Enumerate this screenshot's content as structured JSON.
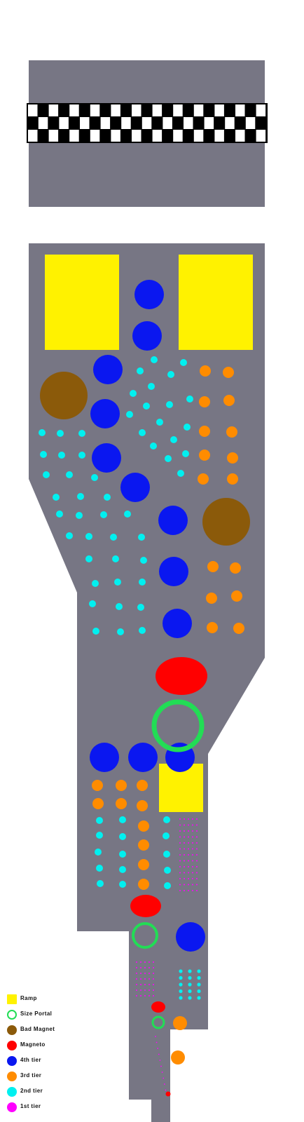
{
  "colors": {
    "board": "#777684",
    "ramp": "#fff200",
    "portal": "#22dd55",
    "bad_magnet": "#8b5a0a",
    "magneto": "#ff0000",
    "tier4": "#0a17f0",
    "tier3": "#ff8c00",
    "tier2": "#00f0f0",
    "tier1": "#ff00ff",
    "checker_dark": "#000000",
    "checker_light": "#ffffff"
  },
  "legend": [
    {
      "key": "ramp",
      "label": "Ramp",
      "icon": "ramp-square-icon",
      "shape": "square"
    },
    {
      "key": "portal",
      "label": "Size Portal",
      "icon": "size-portal-ring-icon",
      "shape": "ring"
    },
    {
      "key": "bad_magnet",
      "label": "Bad Magnet",
      "icon": "bad-magnet-circle-icon",
      "shape": "circle"
    },
    {
      "key": "magneto",
      "label": "Magneto",
      "icon": "magneto-circle-icon",
      "shape": "circle"
    },
    {
      "key": "tier4",
      "label": "4th tier",
      "icon": "tier4-circle-icon",
      "shape": "circle"
    },
    {
      "key": "tier3",
      "label": "3rd tier",
      "icon": "tier3-circle-icon",
      "shape": "circle"
    },
    {
      "key": "tier2",
      "label": "2nd tier",
      "icon": "tier2-circle-icon",
      "shape": "circle"
    },
    {
      "key": "tier1",
      "label": "1st tier",
      "icon": "tier1-circle-icon",
      "shape": "circle"
    }
  ]
}
